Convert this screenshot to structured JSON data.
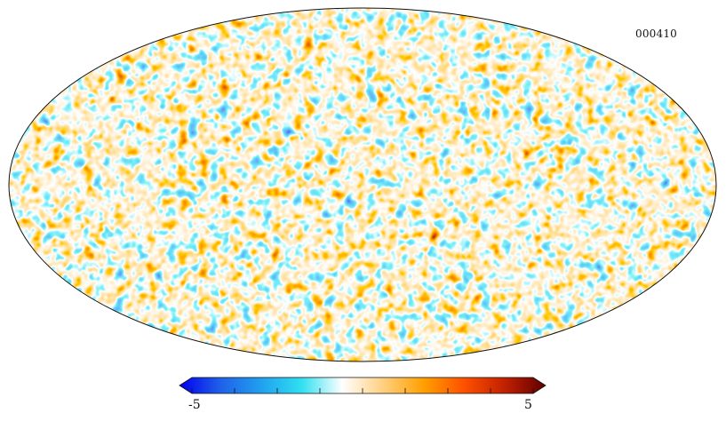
{
  "map": {
    "id_label": "000410"
  },
  "colorbar": {
    "min_label": "-5",
    "max_label": "5",
    "colors": [
      "#0000f0",
      "#2060e8",
      "#20a0f0",
      "#30e0f0",
      "#ffffff",
      "#ffd080",
      "#ffa000",
      "#ff5000",
      "#c02000",
      "#600000"
    ]
  }
}
